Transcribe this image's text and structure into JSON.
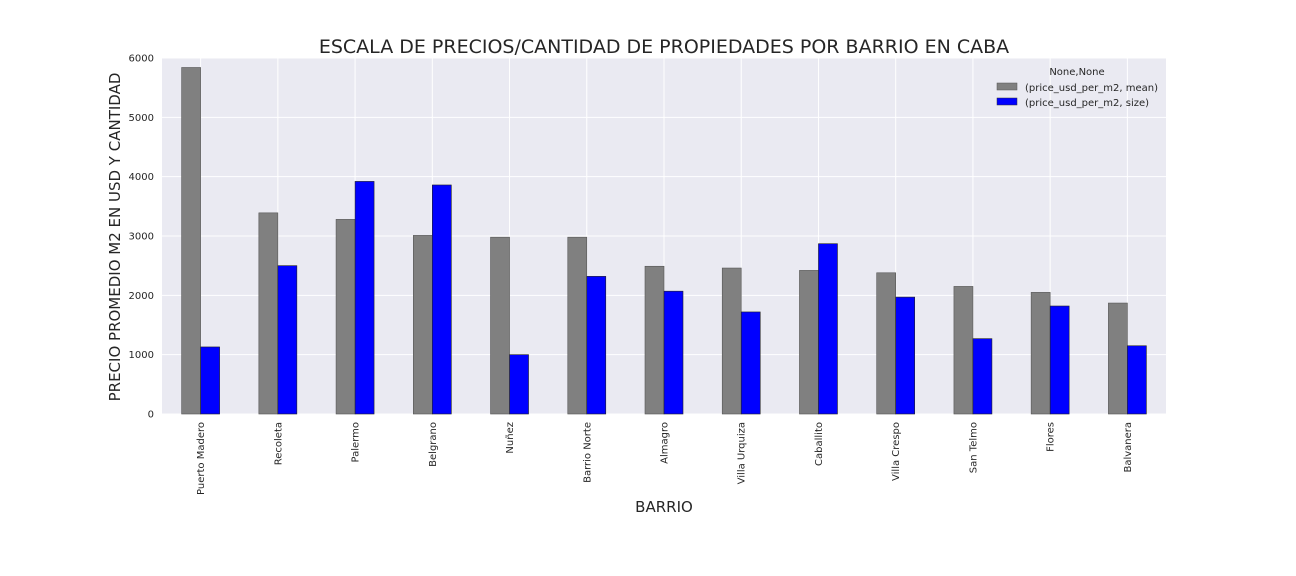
{
  "chart_data": {
    "type": "bar",
    "title": "ESCALA DE PRECIOS/CANTIDAD DE PROPIEDADES POR BARRIO EN CABA",
    "xlabel": "BARRIO",
    "ylabel": "PRECIO PROMEDIO M2 EN USD Y CANTIDAD",
    "ylim": [
      0,
      6000
    ],
    "yticks": [
      0,
      1000,
      2000,
      3000,
      4000,
      5000,
      6000
    ],
    "grid": true,
    "legend_title": "None,None",
    "legend_position": "top-right",
    "categories": [
      "Puerto Madero",
      "Recoleta",
      "Palermo",
      "Belgrano",
      "Nuñez",
      "Barrio Norte",
      "Almagro",
      "Villa Urquiza",
      "Caballito",
      "Villa Crespo",
      "San Telmo",
      "Flores",
      "Balvanera"
    ],
    "series": [
      {
        "name": "(price_usd_per_m2, mean)",
        "color": "#808080",
        "values": [
          5840,
          3390,
          3280,
          3010,
          2980,
          2980,
          2490,
          2460,
          2420,
          2380,
          2150,
          2050,
          1870
        ]
      },
      {
        "name": "(price_usd_per_m2, size)",
        "color": "#0000ff",
        "values": [
          1130,
          2500,
          3920,
          3860,
          1000,
          2320,
          2070,
          1720,
          2870,
          1970,
          1270,
          1820,
          1150
        ]
      }
    ],
    "background_color": "#eaeaf2"
  }
}
